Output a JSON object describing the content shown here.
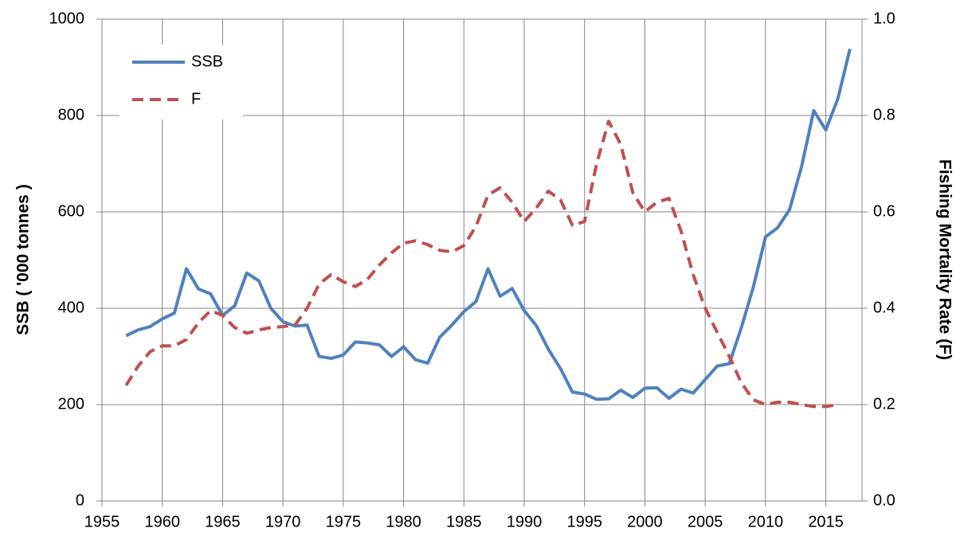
{
  "chart_data": {
    "type": "line",
    "y_label": "SSB ( '000 tonnes )",
    "y2_label": "Fishing Mortality Rate (F)",
    "x": [
      1957,
      1958,
      1959,
      1960,
      1961,
      1962,
      1963,
      1964,
      1965,
      1966,
      1967,
      1968,
      1969,
      1970,
      1971,
      1972,
      1973,
      1974,
      1975,
      1976,
      1977,
      1978,
      1979,
      1980,
      1981,
      1982,
      1983,
      1984,
      1985,
      1986,
      1987,
      1988,
      1989,
      1990,
      1991,
      1992,
      1993,
      1994,
      1995,
      1996,
      1997,
      1998,
      1999,
      2000,
      2001,
      2002,
      2003,
      2004,
      2005,
      2006,
      2007,
      2008,
      2009,
      2010,
      2011,
      2012,
      2013,
      2014,
      2015,
      2016,
      2017
    ],
    "series": [
      {
        "name": "SSB",
        "color": "#4f81bd",
        "dash": false,
        "axis": "y",
        "values": [
          343,
          355,
          362,
          378,
          390,
          482,
          440,
          430,
          385,
          405,
          473,
          457,
          400,
          372,
          363,
          365,
          300,
          296,
          303,
          330,
          328,
          324,
          300,
          320,
          293,
          286,
          340,
          365,
          393,
          414,
          482,
          425,
          441,
          395,
          364,
          315,
          275,
          226,
          222,
          211,
          212,
          230,
          215,
          234,
          235,
          213,
          232,
          224,
          252,
          280,
          285,
          360,
          445,
          548,
          567,
          605,
          695,
          810,
          770,
          835,
          938
        ]
      },
      {
        "name": "F",
        "color": "#c0504d",
        "dash": true,
        "axis": "y2",
        "values": [
          0.24,
          0.28,
          0.31,
          0.322,
          0.322,
          0.335,
          0.37,
          0.395,
          0.385,
          0.36,
          0.348,
          0.355,
          0.36,
          0.362,
          0.365,
          0.4,
          0.45,
          0.47,
          0.455,
          0.445,
          0.46,
          0.49,
          0.515,
          0.535,
          0.54,
          0.532,
          0.52,
          0.517,
          0.53,
          0.57,
          0.635,
          0.65,
          0.62,
          0.58,
          0.608,
          0.643,
          0.625,
          0.572,
          0.58,
          0.7,
          0.788,
          0.74,
          0.64,
          0.6,
          0.62,
          0.628,
          0.56,
          0.47,
          0.4,
          0.35,
          0.3,
          0.245,
          0.21,
          0.2,
          0.205,
          0.205,
          0.2,
          0.196,
          0.196,
          0.2,
          null
        ]
      }
    ],
    "xlim": [
      1955,
      2018
    ],
    "xticks": [
      1955,
      1960,
      1965,
      1970,
      1975,
      1980,
      1985,
      1990,
      1995,
      2000,
      2005,
      2010,
      2015
    ],
    "ylim": [
      0,
      1000
    ],
    "yticks": [
      0,
      200,
      400,
      600,
      800,
      1000
    ],
    "y2lim": [
      0,
      1
    ],
    "y2ticks": [
      {
        "value": 0,
        "label": "0.0"
      },
      {
        "value": 0.2,
        "label": "0.2"
      },
      {
        "value": 0.4,
        "label": "0.4"
      },
      {
        "value": 0.6,
        "label": "0.6"
      },
      {
        "value": 0.8,
        "label": "0.8"
      },
      {
        "value": 1,
        "label": "1.0"
      }
    ],
    "grid": true,
    "legend": "upper left"
  }
}
